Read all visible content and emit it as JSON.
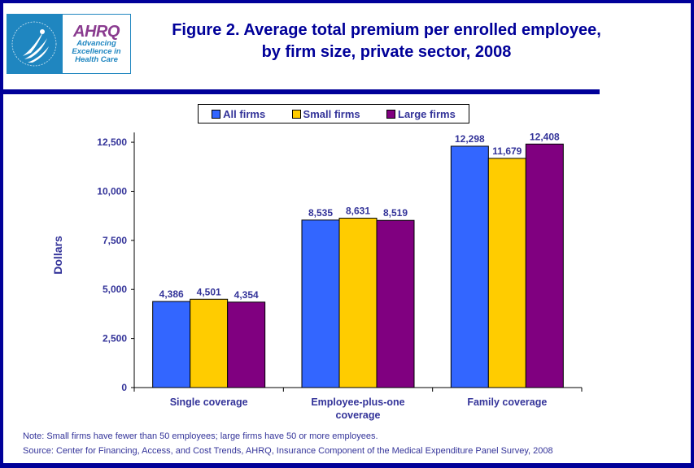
{
  "logo": {
    "agency": "AHRQ",
    "tagline_lines": [
      "Advancing",
      "Excellence in",
      "Health Care"
    ]
  },
  "title_lines": [
    "Figure 2. Average total premium per enrolled employee,",
    "by firm size, private sector, 2008"
  ],
  "colors": {
    "frame": "#000099",
    "title": "#000099",
    "text": "#333399",
    "all_firms": "#3366FF",
    "small_firms": "#FFCC00",
    "large_firms": "#800080"
  },
  "chart_data": {
    "type": "bar",
    "title": "Figure 2. Average total premium per enrolled employee, by firm size, private sector, 2008",
    "xlabel": "",
    "ylabel": "Dollars",
    "ylim": [
      0,
      13000
    ],
    "yticks": [
      0,
      2500,
      5000,
      7500,
      10000,
      12500
    ],
    "ytick_labels": [
      "0",
      "2,500",
      "5,000",
      "7,500",
      "10,000",
      "12,500"
    ],
    "grid": false,
    "legend_position": "top",
    "categories": [
      "Single coverage",
      "Employee-plus-one coverage",
      "Family coverage"
    ],
    "category_label_lines": [
      [
        "Single coverage"
      ],
      [
        "Employee-plus-one",
        "coverage"
      ],
      [
        "Family coverage"
      ]
    ],
    "series": [
      {
        "name": "All firms",
        "color": "#3366FF",
        "values": [
          4386,
          8535,
          12298
        ],
        "labels": [
          "4,386",
          "8,535",
          "12,298"
        ]
      },
      {
        "name": "Small firms",
        "color": "#FFCC00",
        "values": [
          4501,
          8631,
          11679
        ],
        "labels": [
          "4,501",
          "8,631",
          "11,679"
        ]
      },
      {
        "name": "Large firms",
        "color": "#800080",
        "values": [
          4354,
          8519,
          12408
        ],
        "labels": [
          "4,354",
          "8,519",
          "12,408"
        ]
      }
    ]
  },
  "legend": [
    {
      "label": "All firms",
      "color": "#3366FF"
    },
    {
      "label": "Small firms",
      "color": "#FFCC00"
    },
    {
      "label": "Large firms",
      "color": "#800080"
    }
  ],
  "footnotes": {
    "note": "Note: Small firms have fewer than 50 employees; large firms have 50 or more employees.",
    "source": "Source: Center for Financing, Access, and Cost Trends, AHRQ, Insurance Component of the Medical Expenditure Panel Survey, 2008"
  }
}
